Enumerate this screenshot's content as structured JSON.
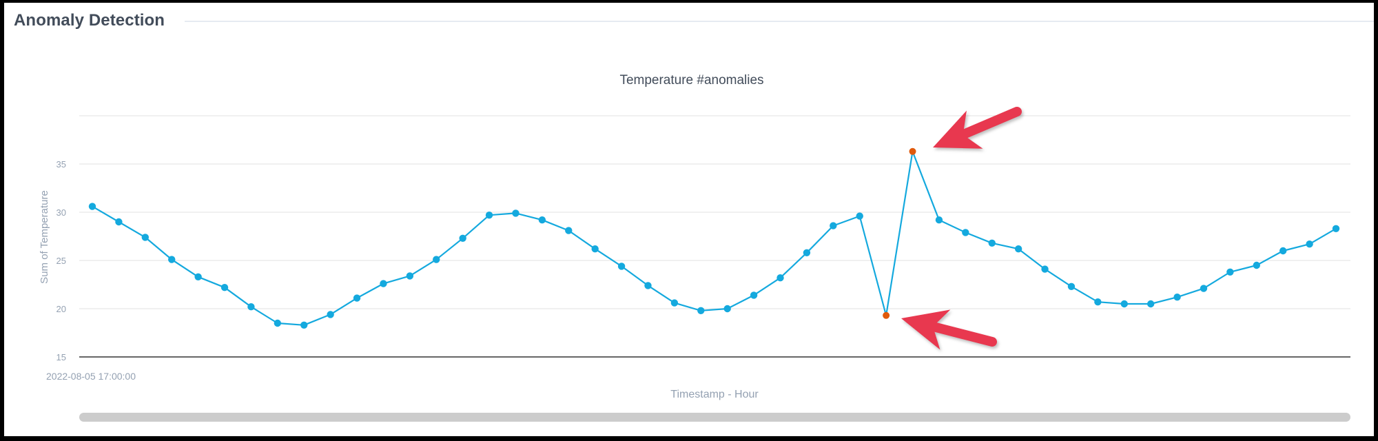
{
  "header": {
    "title": "Anomaly Detection"
  },
  "chart": {
    "title": "Temperature #anomalies",
    "ylabel": "Sum of Temperature",
    "xlabel": "Timestamp - Hour",
    "first_x_tick": "2022-08-05 17:00:00",
    "y_ticks": [
      "15",
      "20",
      "25",
      "30",
      "35"
    ],
    "colors": {
      "line": "#14a9de",
      "normal_point": "#14a9de",
      "anomaly_point": "#e05a0c",
      "annotation_arrow": "#e8384f",
      "grid": "#e6e6e6",
      "axis": "#333333",
      "text_muted": "#94a1b2"
    }
  },
  "chart_data": {
    "type": "line",
    "title": "Temperature #anomalies",
    "xlabel": "Timestamp - Hour",
    "ylabel": "Sum of Temperature",
    "x_start_label": "2022-08-05 17:00:00",
    "ylim": [
      15,
      40
    ],
    "y_ticks": [
      15,
      20,
      25,
      30,
      35
    ],
    "grid": true,
    "legend": "none",
    "series": [
      {
        "name": "Sum of Temperature",
        "values": [
          30.6,
          29.0,
          27.4,
          25.1,
          23.3,
          22.2,
          20.2,
          18.5,
          18.3,
          19.4,
          21.1,
          22.6,
          23.4,
          25.1,
          27.3,
          29.7,
          29.9,
          29.2,
          28.1,
          26.2,
          24.4,
          22.4,
          20.6,
          19.8,
          20.0,
          21.4,
          23.2,
          25.8,
          28.6,
          29.6,
          19.3,
          36.3,
          29.2,
          27.9,
          26.8,
          26.2,
          24.1,
          22.3,
          20.7,
          20.5,
          20.5,
          21.2,
          22.1,
          23.8,
          24.5,
          26.0,
          26.7,
          28.3
        ]
      }
    ],
    "anomalies": [
      {
        "index": 30,
        "value": 19.3,
        "label": "low anomaly"
      },
      {
        "index": 31,
        "value": 36.3,
        "label": "high anomaly"
      }
    ],
    "annotations": [
      {
        "type": "arrow",
        "points_to_index": 31
      },
      {
        "type": "arrow",
        "points_to_index": 30
      }
    ]
  },
  "scrollbar": {
    "position": "full-range"
  }
}
